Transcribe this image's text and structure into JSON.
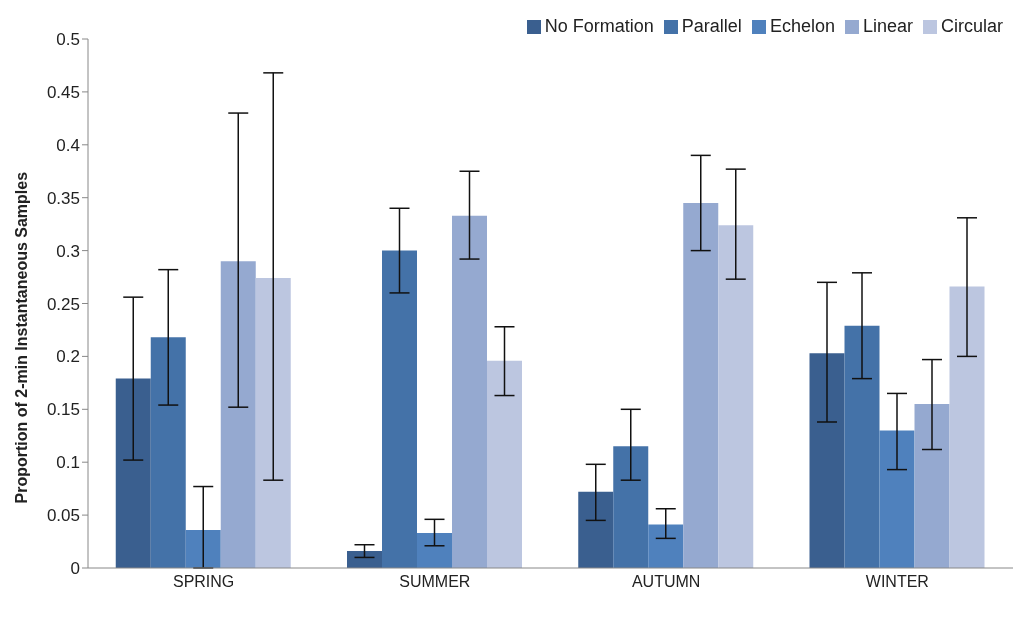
{
  "chart_data": {
    "type": "bar",
    "ylabel": "Proportion of 2-min Instantaneous Samples",
    "categories": [
      "SPRING",
      "SUMMER",
      "AUTUMN",
      "WINTER"
    ],
    "series": [
      {
        "name": "No Formation",
        "color": "#3a5f8f",
        "values": [
          0.179,
          0.016,
          0.072,
          0.203
        ],
        "errors": [
          [
            0.102,
            0.256
          ],
          [
            0.01,
            0.022
          ],
          [
            0.045,
            0.098
          ],
          [
            0.138,
            0.27
          ]
        ]
      },
      {
        "name": "Parallel",
        "color": "#4472a8",
        "values": [
          0.218,
          0.3,
          0.115,
          0.229
        ],
        "errors": [
          [
            0.154,
            0.282
          ],
          [
            0.26,
            0.34
          ],
          [
            0.083,
            0.15
          ],
          [
            0.179,
            0.279
          ]
        ]
      },
      {
        "name": "Echelon",
        "color": "#4f81bd",
        "values": [
          0.036,
          0.033,
          0.041,
          0.13
        ],
        "errors": [
          [
            0,
            0.077
          ],
          [
            0.021,
            0.046
          ],
          [
            0.028,
            0.056
          ],
          [
            0.093,
            0.165
          ]
        ]
      },
      {
        "name": "Linear",
        "color": "#95a9d0",
        "values": [
          0.29,
          0.333,
          0.345,
          0.155
        ],
        "errors": [
          [
            0.152,
            0.43
          ],
          [
            0.292,
            0.375
          ],
          [
            0.3,
            0.39
          ],
          [
            0.112,
            0.197
          ]
        ]
      },
      {
        "name": "Circular",
        "color": "#bcc6e0",
        "values": [
          0.274,
          0.196,
          0.324,
          0.266
        ],
        "errors": [
          [
            0.083,
            0.468
          ],
          [
            0.163,
            0.228
          ],
          [
            0.273,
            0.377
          ],
          [
            0.2,
            0.331
          ]
        ]
      }
    ],
    "ylim": [
      0,
      0.5
    ],
    "yticks": [
      0,
      0.05,
      0.1,
      0.15,
      0.2,
      0.25,
      0.3,
      0.35,
      0.4,
      0.45,
      0.5
    ],
    "grid": false,
    "legend": "top right"
  }
}
